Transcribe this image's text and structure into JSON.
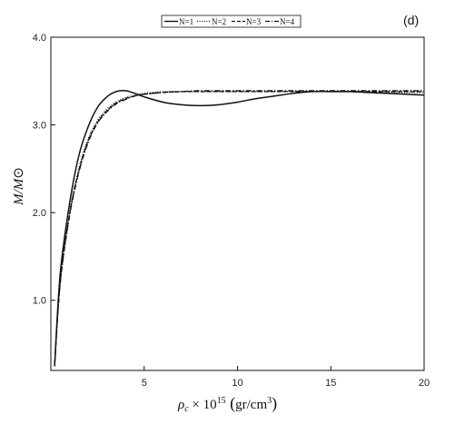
{
  "chart_data": {
    "type": "line",
    "panel_label": "(d)",
    "xlabel": "ρc × 10¹⁵ (gr/cm³)",
    "ylabel": "M/M⊙",
    "xlim": [
      0,
      20
    ],
    "ylim": [
      0.2,
      4.0
    ],
    "xticks": [
      5,
      10,
      15,
      20
    ],
    "yticks": [
      1.0,
      2.0,
      3.0,
      4.0
    ],
    "xtick_labels": [
      "5",
      "10",
      "15",
      "20"
    ],
    "ytick_labels": [
      "1.0",
      "2.0",
      "3.0",
      "4.0"
    ],
    "grid": false,
    "legend_position": "top-center",
    "series": [
      {
        "name": "N=1",
        "dash": "solid",
        "x": [
          0.2,
          0.5,
          1.0,
          1.5,
          2.0,
          2.5,
          3.0,
          3.5,
          4.0,
          4.5,
          5.0,
          6.0,
          7.0,
          8.0,
          9.0,
          10.0,
          11.0,
          12.0,
          13.0,
          14.0,
          15.0,
          16.0,
          17.0,
          18.0,
          19.0,
          20.0
        ],
        "values": [
          0.25,
          1.3,
          2.1,
          2.65,
          2.98,
          3.2,
          3.32,
          3.38,
          3.39,
          3.36,
          3.32,
          3.26,
          3.23,
          3.22,
          3.23,
          3.26,
          3.3,
          3.33,
          3.36,
          3.38,
          3.38,
          3.38,
          3.37,
          3.36,
          3.35,
          3.34
        ]
      },
      {
        "name": "N=2",
        "dash": "dotted",
        "x": [
          0.2,
          0.5,
          1.0,
          1.5,
          2.0,
          2.5,
          3.0,
          3.5,
          4.0,
          4.5,
          5.0,
          6.0,
          7.0,
          8.0,
          10.0,
          12.0,
          14.0,
          16.0,
          18.0,
          20.0
        ],
        "values": [
          0.25,
          1.22,
          2.0,
          2.5,
          2.84,
          3.05,
          3.18,
          3.26,
          3.31,
          3.34,
          3.36,
          3.38,
          3.38,
          3.38,
          3.38,
          3.38,
          3.38,
          3.38,
          3.37,
          3.37
        ]
      },
      {
        "name": "N=3",
        "dash": "dashed",
        "x": [
          0.2,
          0.5,
          1.0,
          1.5,
          2.0,
          2.5,
          3.0,
          3.5,
          4.0,
          4.5,
          5.0,
          6.0,
          7.0,
          8.0,
          10.0,
          12.0,
          14.0,
          16.0,
          18.0,
          20.0
        ],
        "values": [
          0.25,
          1.2,
          1.98,
          2.48,
          2.82,
          3.03,
          3.16,
          3.25,
          3.3,
          3.33,
          3.35,
          3.37,
          3.38,
          3.38,
          3.38,
          3.38,
          3.38,
          3.38,
          3.38,
          3.38
        ]
      },
      {
        "name": "N=4",
        "dash": "dash-dot",
        "x": [
          0.2,
          0.5,
          1.0,
          1.5,
          2.0,
          2.5,
          3.0,
          3.5,
          4.0,
          4.5,
          5.0,
          6.0,
          7.0,
          8.0,
          10.0,
          12.0,
          14.0,
          16.0,
          18.0,
          20.0
        ],
        "values": [
          0.25,
          1.19,
          1.96,
          2.46,
          2.8,
          3.02,
          3.15,
          3.24,
          3.29,
          3.33,
          3.35,
          3.37,
          3.38,
          3.39,
          3.39,
          3.39,
          3.39,
          3.39,
          3.39,
          3.39
        ]
      }
    ]
  }
}
